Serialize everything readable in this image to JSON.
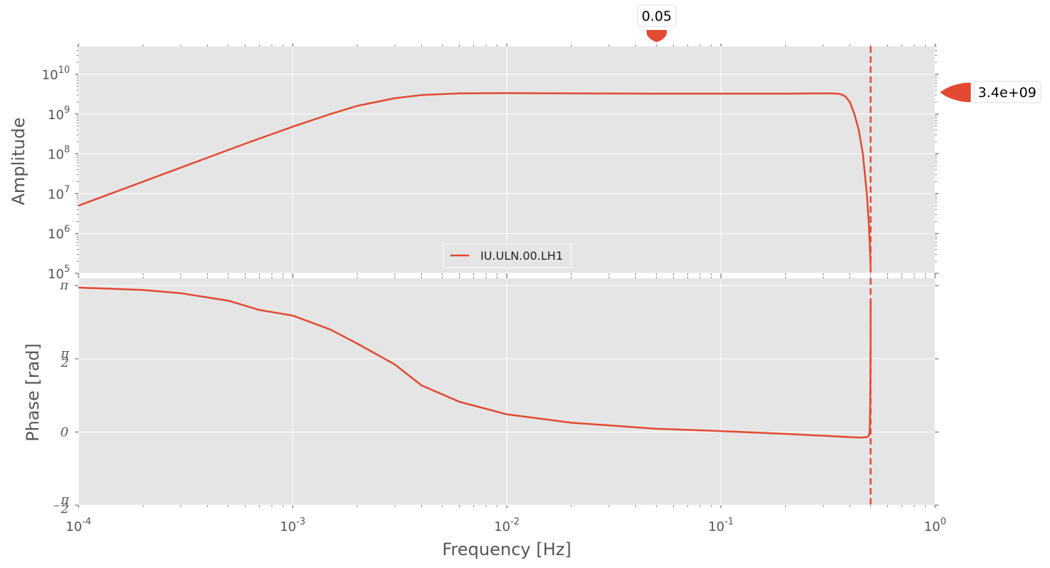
{
  "chart_data": {
    "type": "line",
    "figure_type": "bode-plot",
    "x_scale": "log",
    "x_range": [
      0.0001,
      1
    ],
    "xlabel": "Frequency [Hz]",
    "x_ticks": [
      {
        "value": 0.0001,
        "base": "10",
        "exp": "-4"
      },
      {
        "value": 0.001,
        "base": "10",
        "exp": "-3"
      },
      {
        "value": 0.01,
        "base": "10",
        "exp": "-2"
      },
      {
        "value": 0.1,
        "base": "10",
        "exp": "-1"
      },
      {
        "value": 1,
        "base": "10",
        "exp": "0"
      }
    ],
    "nyquist_line_hz": 0.5,
    "grid": true,
    "legend": {
      "placement": "lower-center of amplitude panel",
      "entries": [
        "IU.ULN.00.LH1"
      ]
    },
    "colors": {
      "series": "#E24A33",
      "panel_bg": "#E5E5E5",
      "grid": "#FFFFFF",
      "text": "#555555"
    },
    "panels": [
      {
        "name": "amplitude",
        "ylabel": "Amplitude",
        "y_scale": "log",
        "y_range": [
          100000,
          50000000000
        ],
        "y_ticks": [
          {
            "value": 100000,
            "base": "10",
            "exp": "5"
          },
          {
            "value": 1000000,
            "base": "10",
            "exp": "6"
          },
          {
            "value": 10000000,
            "base": "10",
            "exp": "7"
          },
          {
            "value": 100000000,
            "base": "10",
            "exp": "8"
          },
          {
            "value": 1000000000,
            "base": "10",
            "exp": "9"
          },
          {
            "value": 10000000000,
            "base": "10",
            "exp": "10"
          }
        ],
        "series": [
          {
            "name": "IU.ULN.00.LH1",
            "x": [
              0.0001,
              0.0002,
              0.0004,
              0.0006,
              0.001,
              0.0015,
              0.002,
              0.003,
              0.004,
              0.006,
              0.01,
              0.02,
              0.05,
              0.1,
              0.2,
              0.3,
              0.33,
              0.36,
              0.38,
              0.4,
              0.42,
              0.44,
              0.46,
              0.48,
              0.49,
              0.495,
              0.5
            ],
            "y": [
              5000000,
              20000000,
              80000000,
              180000000,
              480000000,
              1000000000,
              1600000000,
              2500000000,
              3000000000,
              3300000000,
              3350000000,
              3300000000,
              3250000000,
              3250000000,
              3250000000,
              3300000000,
              3300000000,
              3200000000,
              2800000000,
              2000000000,
              1000000000,
              400000000,
              100000000,
              10000000,
              2000000,
              600000,
              150000
            ]
          }
        ]
      },
      {
        "name": "phase",
        "ylabel": "Phase [rad]",
        "y_scale": "linear",
        "y_range": [
          -1.5708,
          3.3
        ],
        "y_ticks": [
          {
            "value": -1.5708,
            "label": "-π/2"
          },
          {
            "value": 0,
            "label": "0"
          },
          {
            "value": 1.5708,
            "label": "π/2"
          },
          {
            "value": 3.14159,
            "label": "π"
          }
        ],
        "series": [
          {
            "name": "IU.ULN.00.LH1",
            "x": [
              0.0001,
              0.0002,
              0.0003,
              0.0005,
              0.0007,
              0.001,
              0.0015,
              0.002,
              0.003,
              0.004,
              0.006,
              0.01,
              0.02,
              0.05,
              0.1,
              0.2,
              0.3,
              0.4,
              0.45,
              0.48,
              0.49,
              0.495,
              0.498,
              0.5,
              0.5001
            ],
            "y": [
              3.1,
              3.05,
              2.98,
              2.82,
              2.62,
              2.5,
              2.2,
              1.9,
              1.45,
              1.0,
              0.65,
              0.38,
              0.2,
              0.07,
              0.02,
              -0.04,
              -0.08,
              -0.11,
              -0.12,
              -0.11,
              -0.08,
              0.0,
              0.6,
              1.9,
              2.8
            ]
          }
        ]
      }
    ],
    "annotations": [
      {
        "text": "0.05",
        "axis": "x",
        "value": 0.05
      },
      {
        "text": "3.4e+09",
        "axis": "y",
        "value": 3400000000
      }
    ]
  }
}
